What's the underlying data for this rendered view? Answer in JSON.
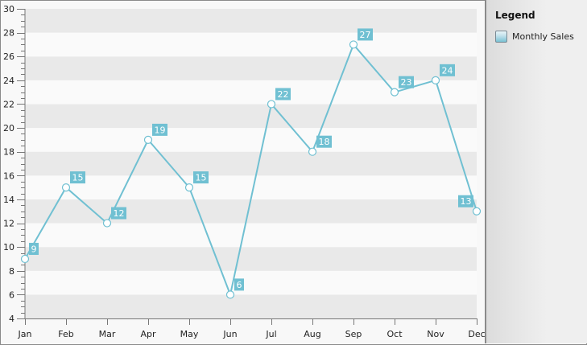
{
  "legend": {
    "title": "Legend",
    "items": [
      {
        "label": "Monthly Sales",
        "color": "#70c0d2"
      }
    ]
  },
  "chart_data": {
    "type": "line",
    "title": "",
    "xlabel": "",
    "ylabel": "",
    "categories": [
      "Jan",
      "Feb",
      "Mar",
      "Apr",
      "May",
      "Jun",
      "Jul",
      "Aug",
      "Sep",
      "Oct",
      "Nov",
      "Dec"
    ],
    "series": [
      {
        "name": "Monthly Sales",
        "values": [
          9,
          15,
          12,
          19,
          15,
          6,
          22,
          18,
          27,
          23,
          24,
          13
        ],
        "color": "#70c0d2"
      }
    ],
    "ylim": [
      4,
      30
    ],
    "yticks": [
      4,
      6,
      8,
      10,
      12,
      14,
      16,
      18,
      20,
      22,
      24,
      26,
      28,
      30
    ],
    "data_labels": true,
    "grid": "alternating horizontal bands",
    "legend_position": "right"
  }
}
